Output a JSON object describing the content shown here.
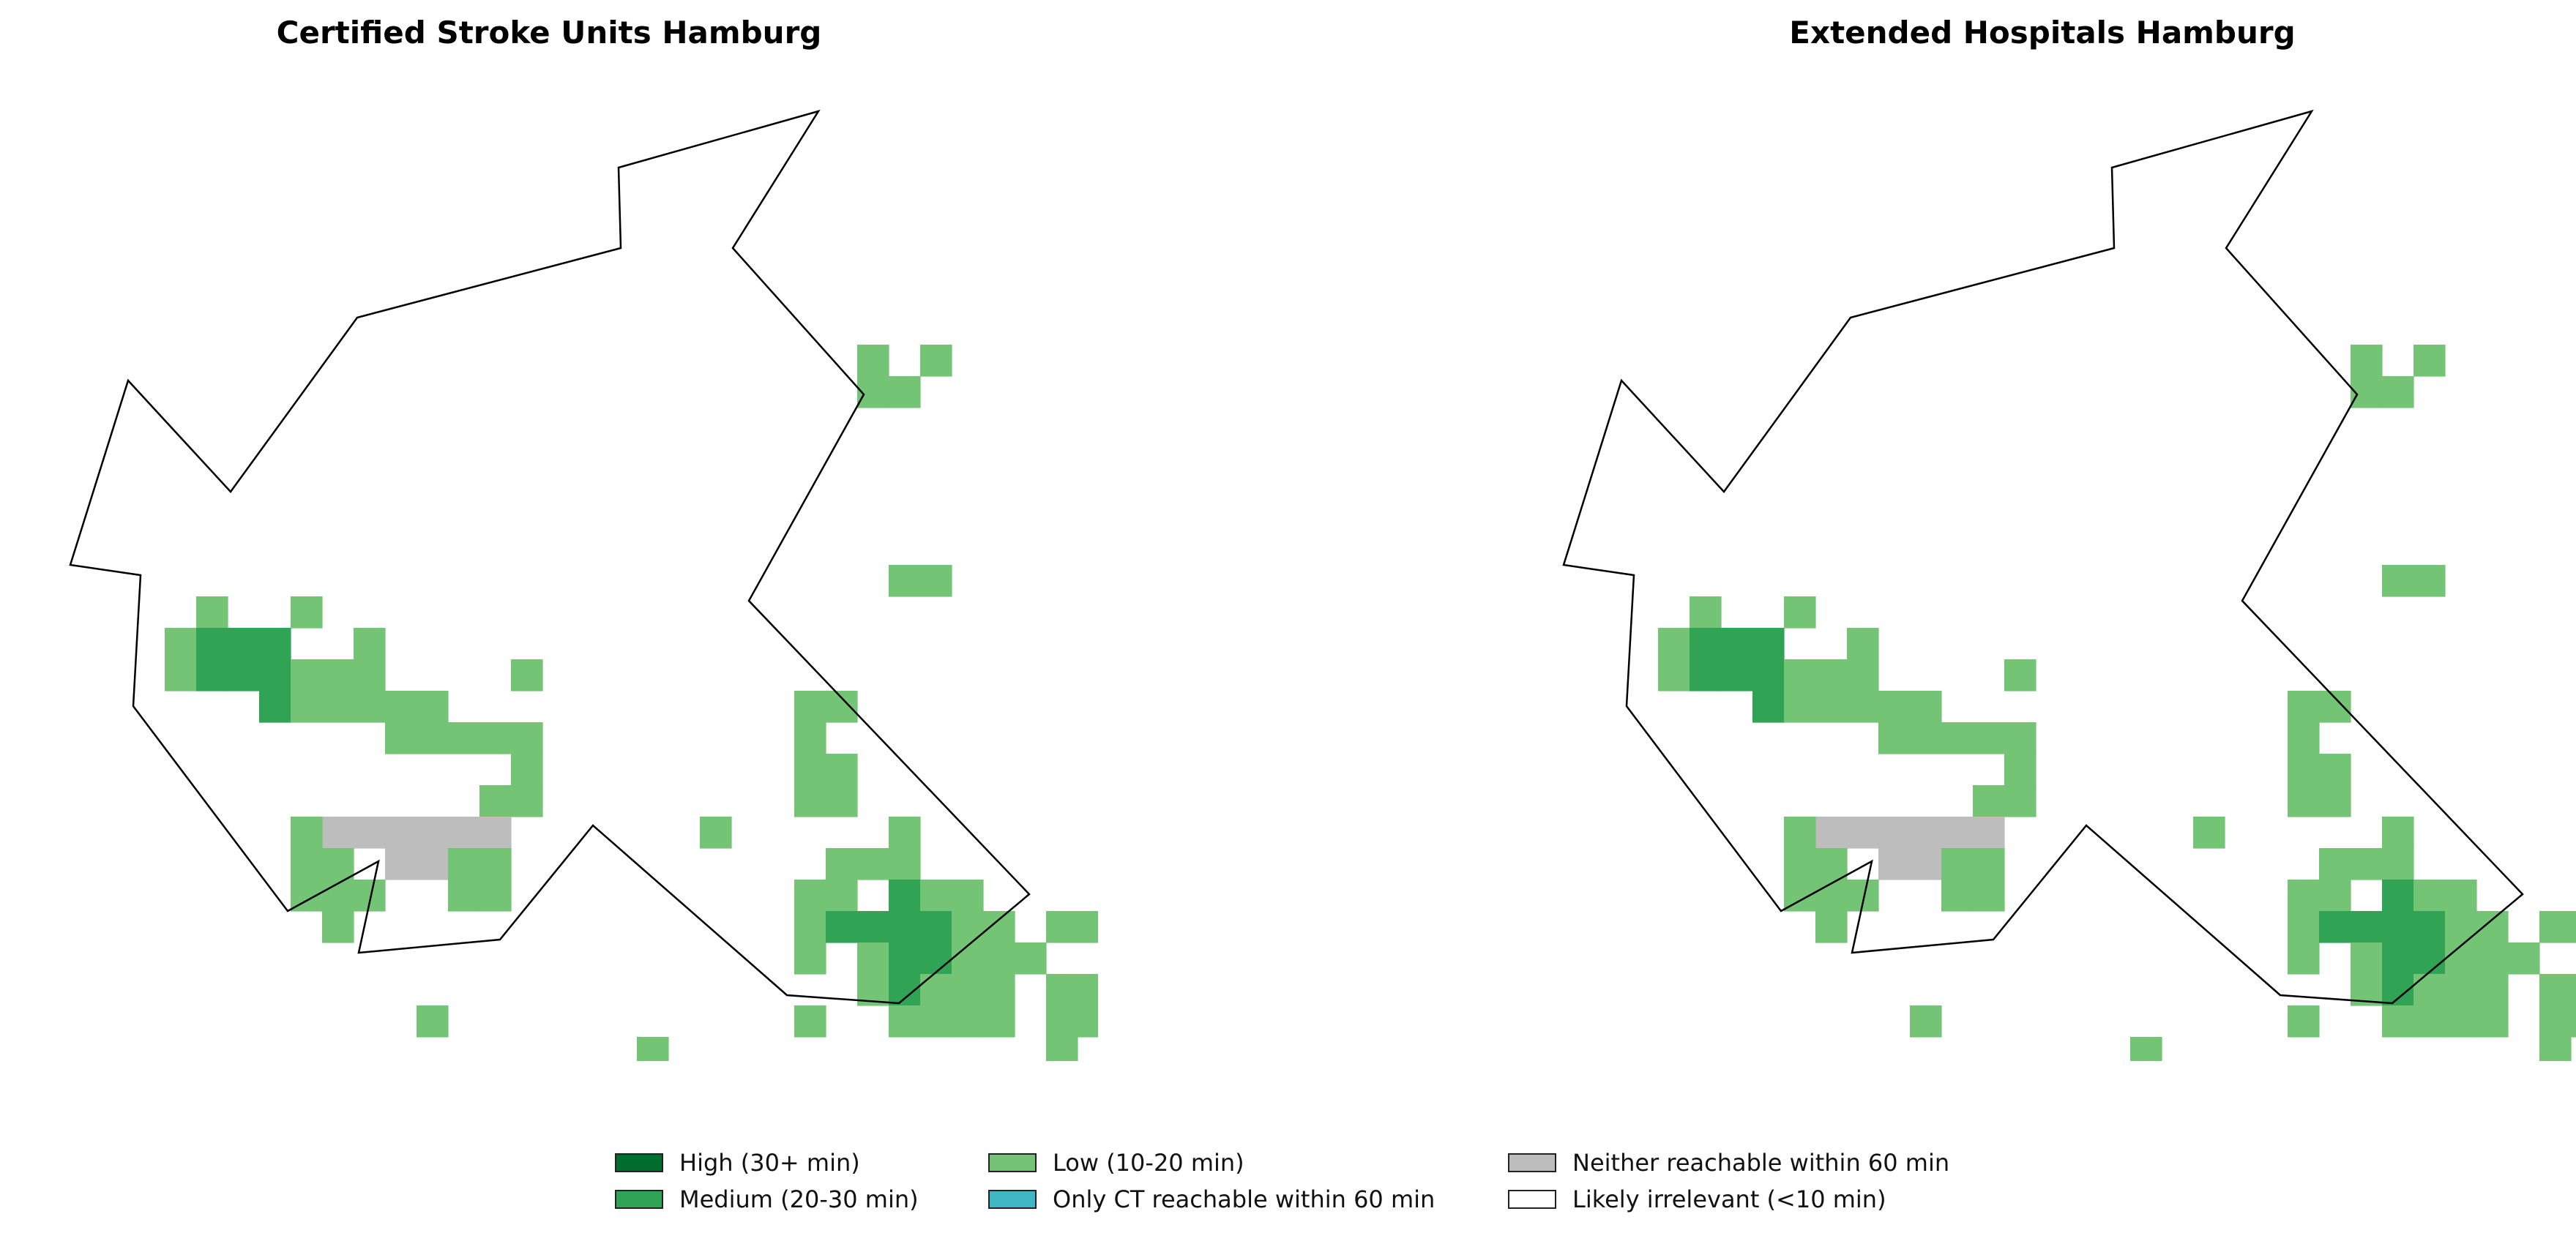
{
  "panels": [
    {
      "title": "Certified Stroke Units Hamburg"
    },
    {
      "title": "Extended Hospitals Hamburg"
    }
  ],
  "legend": [
    {
      "label": "High (30+ min)",
      "color": "#006d2c"
    },
    {
      "label": "Medium (20-30 min)",
      "color": "#31a354"
    },
    {
      "label": "Low (10-20 min)",
      "color": "#74c476"
    },
    {
      "label": "Only CT reachable within 60 min",
      "color": "#41b6c4"
    },
    {
      "label": "Neither reachable within 60 min",
      "color": "#bdbdbd"
    },
    {
      "label": "Likely irrelevant (<10 min)",
      "color": "#ffffff"
    }
  ],
  "map_data": {
    "legend_position": "bottom-center",
    "categories": {
      "h": "High (30+ min)",
      "m": "Medium (20-30 min)",
      "l": "Low (10-20 min)",
      "g": "Neither reachable within 60 min"
    },
    "cells": [
      {
        "cat": "l",
        "col": 45,
        "row": 1
      },
      {
        "cat": "l",
        "col": 39,
        "row": 2
      },
      {
        "cat": "l",
        "col": 41,
        "row": 2
      },
      {
        "cat": "l",
        "col": 43,
        "row": 3
      },
      {
        "cat": "l",
        "col": 40,
        "row": 6
      },
      {
        "cat": "l",
        "col": 41,
        "row": 6
      },
      {
        "cat": "l",
        "col": 42,
        "row": 6
      },
      {
        "cat": "l",
        "col": 40,
        "row": 7
      },
      {
        "cat": "l",
        "col": 41,
        "row": 7
      },
      {
        "cat": "l",
        "col": 42,
        "row": 7
      },
      {
        "cat": "l",
        "col": 43,
        "row": 7
      },
      {
        "cat": "l",
        "col": 38,
        "row": 7
      },
      {
        "cat": "l",
        "col": 25,
        "row": 7
      },
      {
        "cat": "l",
        "col": 27,
        "row": 7
      },
      {
        "cat": "l",
        "col": 25,
        "row": 8
      },
      {
        "cat": "l",
        "col": 26,
        "row": 8
      },
      {
        "cat": "l",
        "col": 38,
        "row": 8
      },
      {
        "cat": "l",
        "col": 40,
        "row": 8
      },
      {
        "cat": "m",
        "col": 41,
        "row": 8
      },
      {
        "cat": "m",
        "col": 43,
        "row": 8
      },
      {
        "cat": "m",
        "col": 44,
        "row": 8
      },
      {
        "cat": "m",
        "col": 45,
        "row": 8
      },
      {
        "cat": "l",
        "col": 38,
        "row": 9
      },
      {
        "cat": "l",
        "col": 37,
        "row": 9
      },
      {
        "cat": "l",
        "col": 40,
        "row": 9
      },
      {
        "cat": "m",
        "col": 41,
        "row": 9
      },
      {
        "cat": "m",
        "col": 42,
        "row": 9
      },
      {
        "cat": "m",
        "col": 43,
        "row": 9
      },
      {
        "cat": "m",
        "col": 44,
        "row": 9
      },
      {
        "cat": "m",
        "col": 45,
        "row": 9
      },
      {
        "cat": "l",
        "col": 46,
        "row": 9
      },
      {
        "cat": "l",
        "col": 37,
        "row": 10
      },
      {
        "cat": "l",
        "col": 38,
        "row": 10
      },
      {
        "cat": "l",
        "col": 39,
        "row": 10
      },
      {
        "cat": "l",
        "col": 40,
        "row": 10
      },
      {
        "cat": "m",
        "col": 41,
        "row": 10
      },
      {
        "cat": "m",
        "col": 42,
        "row": 10
      },
      {
        "cat": "m",
        "col": 43,
        "row": 10
      },
      {
        "cat": "m",
        "col": 44,
        "row": 10
      },
      {
        "cat": "m",
        "col": 45,
        "row": 10
      },
      {
        "cat": "l",
        "col": 46,
        "row": 10
      },
      {
        "cat": "l",
        "col": 47,
        "row": 10
      },
      {
        "cat": "m",
        "col": 48,
        "row": 10
      },
      {
        "cat": "l",
        "col": 37,
        "row": 11
      },
      {
        "cat": "l",
        "col": 38,
        "row": 11
      },
      {
        "cat": "l",
        "col": 39,
        "row": 11
      },
      {
        "cat": "l",
        "col": 40,
        "row": 11
      },
      {
        "cat": "m",
        "col": 41,
        "row": 11
      },
      {
        "cat": "m",
        "col": 42,
        "row": 11
      },
      {
        "cat": "m",
        "col": 43,
        "row": 11
      },
      {
        "cat": "m",
        "col": 44,
        "row": 11
      },
      {
        "cat": "m",
        "col": 45,
        "row": 11
      },
      {
        "cat": "l",
        "col": 46,
        "row": 11
      },
      {
        "cat": "l",
        "col": 47,
        "row": 11
      },
      {
        "cat": "l",
        "col": 48,
        "row": 11
      },
      {
        "cat": "l",
        "col": 39,
        "row": 12
      },
      {
        "cat": "l",
        "col": 40,
        "row": 12
      },
      {
        "cat": "m",
        "col": 41,
        "row": 12
      },
      {
        "cat": "l",
        "col": 42,
        "row": 12
      },
      {
        "cat": "l",
        "col": 43,
        "row": 12
      },
      {
        "cat": "l",
        "col": 44,
        "row": 12
      },
      {
        "cat": "l",
        "col": 45,
        "row": 12
      },
      {
        "cat": "m",
        "col": 46,
        "row": 12
      },
      {
        "cat": "l",
        "col": 47,
        "row": 12
      },
      {
        "cat": "l",
        "col": 48,
        "row": 12
      },
      {
        "cat": "l",
        "col": 49,
        "row": 12
      },
      {
        "cat": "l",
        "col": 39,
        "row": 13
      },
      {
        "cat": "l",
        "col": 40,
        "row": 13
      },
      {
        "cat": "l",
        "col": 41,
        "row": 13
      },
      {
        "cat": "l",
        "col": 42,
        "row": 13
      },
      {
        "cat": "l",
        "col": 43,
        "row": 13
      },
      {
        "cat": "l",
        "col": 44,
        "row": 13
      },
      {
        "cat": "l",
        "col": 45,
        "row": 13
      },
      {
        "cat": "l",
        "col": 46,
        "row": 13
      },
      {
        "cat": "l",
        "col": 47,
        "row": 13
      },
      {
        "cat": "l",
        "col": 48,
        "row": 13
      },
      {
        "cat": "l",
        "col": 26,
        "row": 14
      },
      {
        "cat": "l",
        "col": 27,
        "row": 14
      },
      {
        "cat": "l",
        "col": 37,
        "row": 14
      },
      {
        "cat": "l",
        "col": 38,
        "row": 14
      },
      {
        "cat": "l",
        "col": 46,
        "row": 14
      },
      {
        "cat": "l",
        "col": 47,
        "row": 14
      },
      {
        "cat": "l",
        "col": 34,
        "row": 15
      },
      {
        "cat": "l",
        "col": 35,
        "row": 15
      },
      {
        "cat": "l",
        "col": 36,
        "row": 15
      },
      {
        "cat": "l",
        "col": 34,
        "row": 16
      },
      {
        "cat": "l",
        "col": 35,
        "row": 16
      },
      {
        "cat": "l",
        "col": 36,
        "row": 16
      },
      {
        "cat": "l",
        "col": 4,
        "row": 15
      },
      {
        "cat": "l",
        "col": 7,
        "row": 15
      },
      {
        "cat": "l",
        "col": 3,
        "row": 16
      },
      {
        "cat": "m",
        "col": 4,
        "row": 16
      },
      {
        "cat": "m",
        "col": 5,
        "row": 16
      },
      {
        "cat": "m",
        "col": 6,
        "row": 16
      },
      {
        "cat": "l",
        "col": 9,
        "row": 16
      },
      {
        "cat": "l",
        "col": 3,
        "row": 17
      },
      {
        "cat": "m",
        "col": 4,
        "row": 17
      },
      {
        "cat": "m",
        "col": 5,
        "row": 17
      },
      {
        "cat": "m",
        "col": 6,
        "row": 17
      },
      {
        "cat": "l",
        "col": 7,
        "row": 17
      },
      {
        "cat": "l",
        "col": 8,
        "row": 17
      },
      {
        "cat": "l",
        "col": 9,
        "row": 17
      },
      {
        "cat": "l",
        "col": 14,
        "row": 17
      },
      {
        "cat": "l",
        "col": 33,
        "row": 17
      },
      {
        "cat": "m",
        "col": 6,
        "row": 18
      },
      {
        "cat": "l",
        "col": 7,
        "row": 18
      },
      {
        "cat": "l",
        "col": 8,
        "row": 18
      },
      {
        "cat": "l",
        "col": 9,
        "row": 18
      },
      {
        "cat": "l",
        "col": 10,
        "row": 18
      },
      {
        "cat": "l",
        "col": 11,
        "row": 18
      },
      {
        "cat": "l",
        "col": 23,
        "row": 18
      },
      {
        "cat": "l",
        "col": 24,
        "row": 18
      },
      {
        "cat": "l",
        "col": 10,
        "row": 19
      },
      {
        "cat": "l",
        "col": 11,
        "row": 19
      },
      {
        "cat": "l",
        "col": 12,
        "row": 19
      },
      {
        "cat": "l",
        "col": 13,
        "row": 19
      },
      {
        "cat": "l",
        "col": 14,
        "row": 19
      },
      {
        "cat": "l",
        "col": 23,
        "row": 19
      },
      {
        "cat": "l",
        "col": 14,
        "row": 20
      },
      {
        "cat": "l",
        "col": 23,
        "row": 20
      },
      {
        "cat": "l",
        "col": 24,
        "row": 20
      },
      {
        "cat": "l",
        "col": 13,
        "row": 21
      },
      {
        "cat": "l",
        "col": 14,
        "row": 21
      },
      {
        "cat": "l",
        "col": 23,
        "row": 21
      },
      {
        "cat": "l",
        "col": 24,
        "row": 21
      },
      {
        "cat": "l",
        "col": 41,
        "row": 21
      },
      {
        "cat": "g",
        "col": 8,
        "row": 22
      },
      {
        "cat": "g",
        "col": 9,
        "row": 22
      },
      {
        "cat": "g",
        "col": 10,
        "row": 22
      },
      {
        "cat": "g",
        "col": 11,
        "row": 22
      },
      {
        "cat": "g",
        "col": 12,
        "row": 22
      },
      {
        "cat": "g",
        "col": 13,
        "row": 22
      },
      {
        "cat": "l",
        "col": 7,
        "row": 22
      },
      {
        "cat": "l",
        "col": 20,
        "row": 22
      },
      {
        "cat": "l",
        "col": 26,
        "row": 22
      },
      {
        "cat": "l",
        "col": 41,
        "row": 22
      },
      {
        "cat": "l",
        "col": 42,
        "row": 22
      },
      {
        "cat": "l",
        "col": 43,
        "row": 22
      },
      {
        "cat": "l",
        "col": 7,
        "row": 23
      },
      {
        "cat": "l",
        "col": 8,
        "row": 23
      },
      {
        "cat": "g",
        "col": 10,
        "row": 23
      },
      {
        "cat": "g",
        "col": 11,
        "row": 23
      },
      {
        "cat": "l",
        "col": 12,
        "row": 23
      },
      {
        "cat": "l",
        "col": 13,
        "row": 23
      },
      {
        "cat": "l",
        "col": 24,
        "row": 23
      },
      {
        "cat": "l",
        "col": 25,
        "row": 23
      },
      {
        "cat": "l",
        "col": 26,
        "row": 23
      },
      {
        "cat": "l",
        "col": 37,
        "row": 23
      },
      {
        "cat": "l",
        "col": 38,
        "row": 23
      },
      {
        "cat": "l",
        "col": 39,
        "row": 23
      },
      {
        "cat": "l",
        "col": 40,
        "row": 23
      },
      {
        "cat": "m",
        "col": 41,
        "row": 23
      },
      {
        "cat": "l",
        "col": 42,
        "row": 23
      },
      {
        "cat": "l",
        "col": 43,
        "row": 23
      },
      {
        "cat": "l",
        "col": 44,
        "row": 23
      },
      {
        "cat": "l",
        "col": 7,
        "row": 24
      },
      {
        "cat": "l",
        "col": 8,
        "row": 24
      },
      {
        "cat": "l",
        "col": 9,
        "row": 24
      },
      {
        "cat": "l",
        "col": 12,
        "row": 24
      },
      {
        "cat": "l",
        "col": 13,
        "row": 24
      },
      {
        "cat": "l",
        "col": 23,
        "row": 24
      },
      {
        "cat": "l",
        "col": 24,
        "row": 24
      },
      {
        "cat": "m",
        "col": 26,
        "row": 24
      },
      {
        "cat": "l",
        "col": 27,
        "row": 24
      },
      {
        "cat": "l",
        "col": 28,
        "row": 24
      },
      {
        "cat": "l",
        "col": 37,
        "row": 24
      },
      {
        "cat": "l",
        "col": 38,
        "row": 24
      },
      {
        "cat": "l",
        "col": 39,
        "row": 24
      },
      {
        "cat": "l",
        "col": 40,
        "row": 24
      },
      {
        "cat": "l",
        "col": 41,
        "row": 24
      },
      {
        "cat": "l",
        "col": 42,
        "row": 24
      },
      {
        "cat": "l",
        "col": 43,
        "row": 24
      },
      {
        "cat": "l",
        "col": 44,
        "row": 24
      },
      {
        "cat": "l",
        "col": 45,
        "row": 24
      },
      {
        "cat": "l",
        "col": 8,
        "row": 25
      },
      {
        "cat": "l",
        "col": 23,
        "row": 25
      },
      {
        "cat": "m",
        "col": 24,
        "row": 25
      },
      {
        "cat": "m",
        "col": 25,
        "row": 25
      },
      {
        "cat": "m",
        "col": 26,
        "row": 25
      },
      {
        "cat": "m",
        "col": 27,
        "row": 25
      },
      {
        "cat": "l",
        "col": 28,
        "row": 25
      },
      {
        "cat": "l",
        "col": 29,
        "row": 25
      },
      {
        "cat": "l",
        "col": 31,
        "row": 25
      },
      {
        "cat": "l",
        "col": 32,
        "row": 25
      },
      {
        "cat": "l",
        "col": 37,
        "row": 25
      },
      {
        "cat": "l",
        "col": 39,
        "row": 25
      },
      {
        "cat": "l",
        "col": 40,
        "row": 25
      },
      {
        "cat": "l",
        "col": 41,
        "row": 25
      },
      {
        "cat": "l",
        "col": 42,
        "row": 25
      },
      {
        "cat": "l",
        "col": 43,
        "row": 25
      },
      {
        "cat": "l",
        "col": 44,
        "row": 25
      },
      {
        "cat": "l",
        "col": 45,
        "row": 25
      },
      {
        "cat": "l",
        "col": 46,
        "row": 25
      },
      {
        "cat": "l",
        "col": 23,
        "row": 26
      },
      {
        "cat": "l",
        "col": 25,
        "row": 26
      },
      {
        "cat": "m",
        "col": 26,
        "row": 26
      },
      {
        "cat": "m",
        "col": 27,
        "row": 26
      },
      {
        "cat": "l",
        "col": 28,
        "row": 26
      },
      {
        "cat": "l",
        "col": 29,
        "row": 26
      },
      {
        "cat": "l",
        "col": 30,
        "row": 26
      },
      {
        "cat": "l",
        "col": 35,
        "row": 26
      },
      {
        "cat": "l",
        "col": 39,
        "row": 26
      },
      {
        "cat": "l",
        "col": 40,
        "row": 26
      },
      {
        "cat": "l",
        "col": 41,
        "row": 26
      },
      {
        "cat": "l",
        "col": 43,
        "row": 26
      },
      {
        "cat": "l",
        "col": 44,
        "row": 26
      },
      {
        "cat": "l",
        "col": 25,
        "row": 27
      },
      {
        "cat": "m",
        "col": 26,
        "row": 27
      },
      {
        "cat": "l",
        "col": 27,
        "row": 27
      },
      {
        "cat": "l",
        "col": 28,
        "row": 27
      },
      {
        "cat": "l",
        "col": 29,
        "row": 27
      },
      {
        "cat": "l",
        "col": 31,
        "row": 27
      },
      {
        "cat": "l",
        "col": 32,
        "row": 27
      },
      {
        "cat": "l",
        "col": 33,
        "row": 27
      },
      {
        "cat": "l",
        "col": 34,
        "row": 27
      },
      {
        "cat": "l",
        "col": 35,
        "row": 27
      },
      {
        "cat": "l",
        "col": 11,
        "row": 28
      },
      {
        "cat": "l",
        "col": 23,
        "row": 28
      },
      {
        "cat": "l",
        "col": 26,
        "row": 28
      },
      {
        "cat": "l",
        "col": 27,
        "row": 28
      },
      {
        "cat": "l",
        "col": 28,
        "row": 28
      },
      {
        "cat": "l",
        "col": 29,
        "row": 28
      },
      {
        "cat": "l",
        "col": 31,
        "row": 28
      },
      {
        "cat": "l",
        "col": 32,
        "row": 28
      },
      {
        "cat": "l",
        "col": 35,
        "row": 28
      },
      {
        "cat": "l",
        "col": 18,
        "row": 29
      },
      {
        "cat": "l",
        "col": 31,
        "row": 29
      },
      {
        "cat": "l",
        "col": 33,
        "row": 29
      },
      {
        "cat": "l",
        "col": 52,
        "row": 34
      }
    ]
  }
}
